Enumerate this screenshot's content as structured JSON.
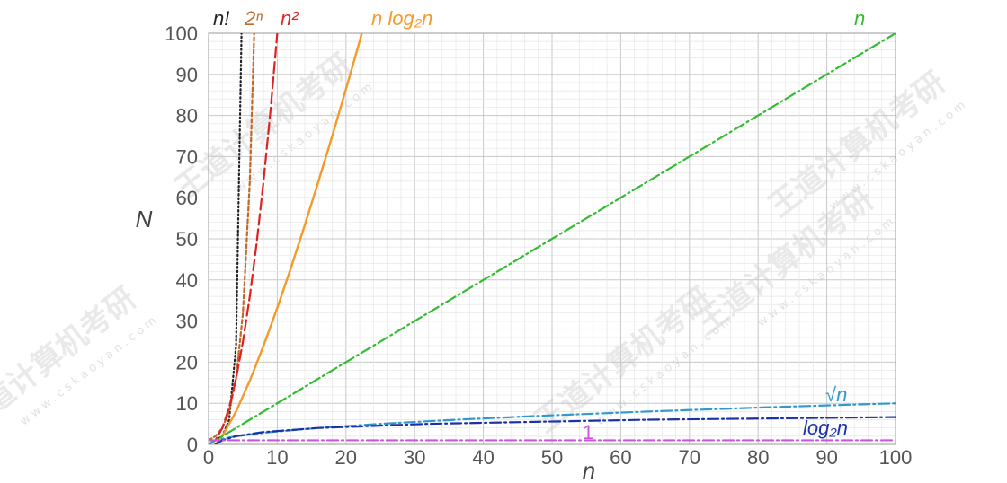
{
  "chart_data": {
    "type": "line",
    "title": "",
    "xlabel": "n",
    "ylabel": "N",
    "xlim": [
      0,
      100
    ],
    "ylim": [
      0,
      100
    ],
    "grid": true,
    "x_ticks": [
      "0",
      "10",
      "20",
      "30",
      "40",
      "50",
      "60",
      "70",
      "80",
      "90",
      "100"
    ],
    "y_ticks": [
      "0",
      "10",
      "20",
      "30",
      "40",
      "50",
      "60",
      "70",
      "80",
      "90",
      "100"
    ],
    "series": [
      {
        "name": "n!",
        "color": "#222222",
        "style": "dotted",
        "points": [
          [
            1,
            1
          ],
          [
            2,
            2
          ],
          [
            3,
            6
          ],
          [
            4,
            24
          ],
          [
            5,
            120
          ]
        ]
      },
      {
        "name": "2ⁿ",
        "color": "#c0692a",
        "style": "dashed-short",
        "points": [
          [
            0,
            1
          ],
          [
            1,
            2
          ],
          [
            2,
            4
          ],
          [
            3,
            8
          ],
          [
            4,
            16
          ],
          [
            5,
            32
          ],
          [
            6,
            64
          ],
          [
            6.64,
            100
          ]
        ]
      },
      {
        "name": "n²",
        "color": "#dd2222",
        "style": "dashed",
        "points": [
          [
            0,
            0
          ],
          [
            1,
            1
          ],
          [
            2,
            4
          ],
          [
            3,
            9
          ],
          [
            4,
            16
          ],
          [
            5,
            25
          ],
          [
            6,
            36
          ],
          [
            7,
            49
          ],
          [
            8,
            64
          ],
          [
            9,
            81
          ],
          [
            10,
            100
          ]
        ]
      },
      {
        "name": "n log₂n",
        "color": "#f39a2a",
        "style": "solid",
        "points": [
          [
            1,
            0
          ],
          [
            2,
            2
          ],
          [
            4,
            8
          ],
          [
            6,
            15.5
          ],
          [
            8,
            24
          ],
          [
            10,
            33.2
          ],
          [
            12,
            43
          ],
          [
            14,
            53.3
          ],
          [
            16,
            64
          ],
          [
            18,
            75
          ],
          [
            20,
            86.4
          ],
          [
            22,
            98.1
          ],
          [
            22.3,
            100
          ]
        ]
      },
      {
        "name": "n",
        "color": "#33bb33",
        "style": "dash-dot",
        "points": [
          [
            0,
            0
          ],
          [
            100,
            100
          ]
        ]
      },
      {
        "name": "√n",
        "color": "#3399cc",
        "style": "dash-dot",
        "points": [
          [
            0,
            0
          ],
          [
            1,
            1
          ],
          [
            4,
            2
          ],
          [
            9,
            3
          ],
          [
            16,
            4
          ],
          [
            25,
            5
          ],
          [
            36,
            6
          ],
          [
            49,
            7
          ],
          [
            64,
            8
          ],
          [
            81,
            9
          ],
          [
            100,
            10
          ]
        ]
      },
      {
        "name": "log₂n",
        "color": "#1a33aa",
        "style": "dash-dot",
        "points": [
          [
            1,
            0
          ],
          [
            2,
            1
          ],
          [
            4,
            2
          ],
          [
            8,
            3
          ],
          [
            16,
            4
          ],
          [
            32,
            5
          ],
          [
            64,
            6
          ],
          [
            100,
            6.64
          ]
        ]
      },
      {
        "name": "1",
        "color": "#cc55dd",
        "style": "dash-dot",
        "points": [
          [
            0,
            1
          ],
          [
            100,
            1
          ]
        ]
      }
    ]
  },
  "watermarks": [
    "王道计算机考研",
    "王道计算机考研",
    "王道计算机考研",
    "王道计算机考研",
    "王道计算机考研"
  ],
  "watermark_url": "www.cskaoyan.com"
}
